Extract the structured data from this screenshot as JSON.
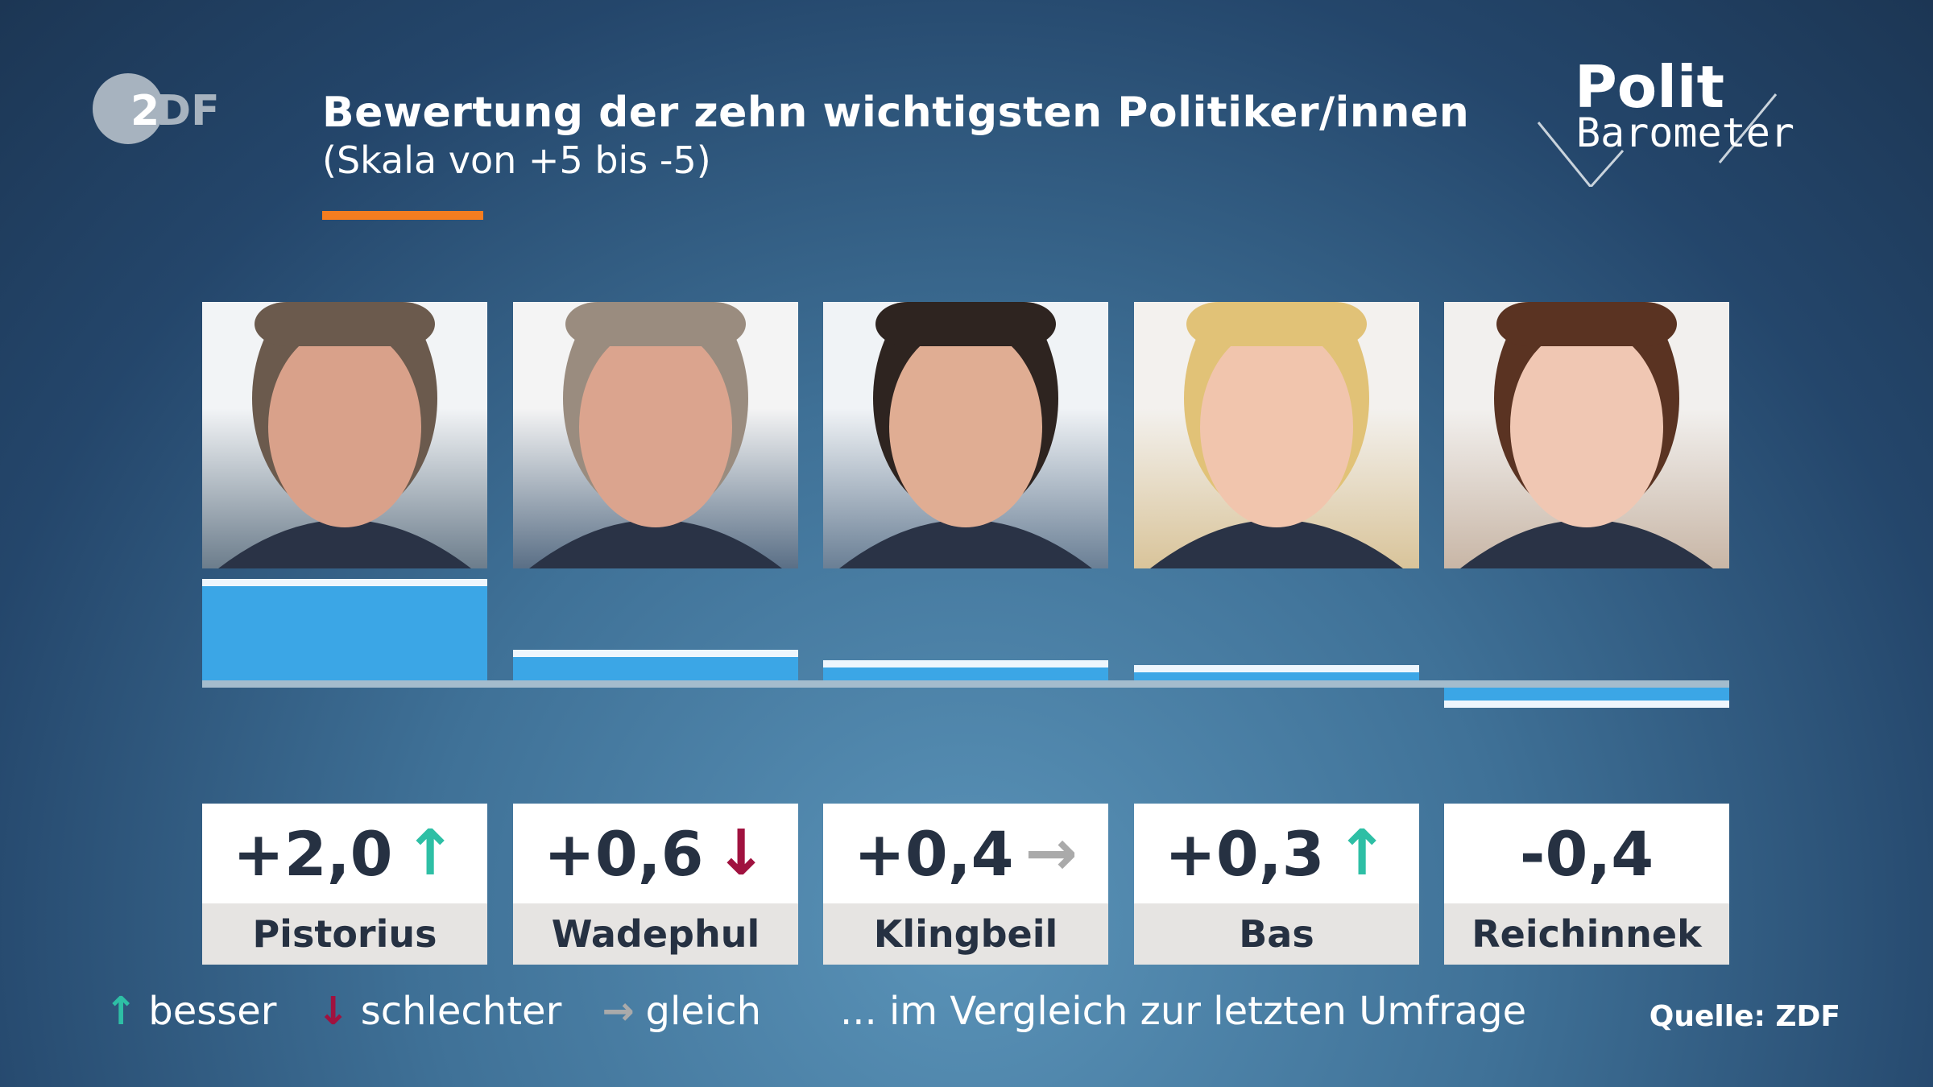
{
  "header": {
    "logo": "ZDF",
    "title": "Bewertung der zehn wichtigsten Politiker/innen",
    "subtitle": "(Skala von +5 bis -5)",
    "brand_line1": "Polit",
    "brand_line2": "Barometer"
  },
  "colors": {
    "bar": "#3ba6e6",
    "accent": "#f47d20",
    "up": "#2ebfa5",
    "down": "#a0123f",
    "same": "#aaaaaa"
  },
  "chart_data": {
    "type": "bar",
    "categories": [
      "Pistorius",
      "Wadephul",
      "Klingbeil",
      "Bas",
      "Reichinnek"
    ],
    "values": [
      2.0,
      0.6,
      0.4,
      0.3,
      -0.4
    ],
    "labels": [
      "+2,0",
      "+0,6",
      "+0,4",
      "+0,3",
      "-0,4"
    ],
    "trend": [
      "up",
      "down",
      "same",
      "up",
      "none"
    ],
    "ylim": [
      -5,
      5
    ],
    "title": "Bewertung der zehn wichtigsten Politiker/innen",
    "subtitle": "(Skala von +5 bis -5)"
  },
  "legend": {
    "better": "besser",
    "worse": "schlechter",
    "same": "gleich",
    "note": "... im Vergleich zur letzten Umfrage"
  },
  "source": "Quelle: ZDF"
}
